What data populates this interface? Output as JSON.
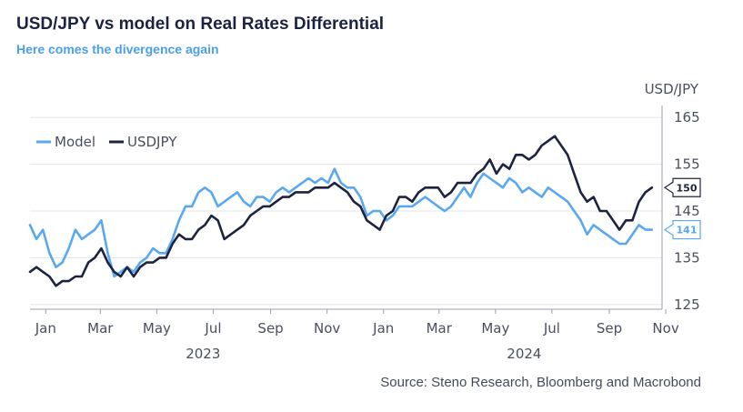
{
  "header": {
    "title": "USD/JPY vs model on Real Rates Differential",
    "subtitle": "Here comes the divergence again"
  },
  "footer": {
    "source": "Source: Steno Research, Bloomberg and Macrobond"
  },
  "colors": {
    "model": "#5aa7f2",
    "usdjpy": "#1e2440",
    "grid": "#e2e4ea",
    "axis": "#9aa0ad"
  },
  "chart_data": {
    "type": "line",
    "ylabel": "USD/JPY",
    "ylim": [
      124,
      166
    ],
    "yticks": [
      125,
      135,
      145,
      155,
      165
    ],
    "xlim": [
      "2022-12-15",
      "2024-10-28"
    ],
    "month_ticks": [
      {
        "date": "2023-01-01",
        "label": "Jan"
      },
      {
        "date": "2023-03-01",
        "label": "Mar"
      },
      {
        "date": "2023-05-01",
        "label": "May"
      },
      {
        "date": "2023-07-01",
        "label": "Jul"
      },
      {
        "date": "2023-09-01",
        "label": "Sep"
      },
      {
        "date": "2023-11-01",
        "label": "Nov"
      },
      {
        "date": "2024-01-01",
        "label": "Jan"
      },
      {
        "date": "2024-03-01",
        "label": "Mar"
      },
      {
        "date": "2024-05-01",
        "label": "May"
      },
      {
        "date": "2024-07-01",
        "label": "Jul"
      },
      {
        "date": "2024-09-01",
        "label": "Sep"
      },
      {
        "date": "2024-11-01",
        "label": "Nov"
      }
    ],
    "year_labels": [
      {
        "date": "2023-06-20",
        "label": "2023"
      },
      {
        "date": "2024-06-01",
        "label": "2024"
      }
    ],
    "legend_position": "top-left",
    "grid": true,
    "end_labels": [
      {
        "series": "USDJPY",
        "label": "150",
        "value": 150
      },
      {
        "series": "Model",
        "label": "141",
        "value": 141
      }
    ],
    "series": [
      {
        "name": "Model",
        "points": [
          [
            "2022-12-15",
            142
          ],
          [
            "2022-12-22",
            139
          ],
          [
            "2022-12-29",
            141
          ],
          [
            "2023-01-05",
            136
          ],
          [
            "2023-01-12",
            133
          ],
          [
            "2023-01-19",
            134
          ],
          [
            "2023-01-26",
            137
          ],
          [
            "2023-02-02",
            141
          ],
          [
            "2023-02-09",
            139
          ],
          [
            "2023-02-16",
            140
          ],
          [
            "2023-02-23",
            141
          ],
          [
            "2023-03-02",
            143
          ],
          [
            "2023-03-09",
            136
          ],
          [
            "2023-03-16",
            131
          ],
          [
            "2023-03-23",
            132
          ],
          [
            "2023-03-30",
            133
          ],
          [
            "2023-04-06",
            132
          ],
          [
            "2023-04-13",
            134
          ],
          [
            "2023-04-20",
            135
          ],
          [
            "2023-04-27",
            137
          ],
          [
            "2023-05-04",
            136
          ],
          [
            "2023-05-11",
            136
          ],
          [
            "2023-05-18",
            139
          ],
          [
            "2023-05-25",
            143
          ],
          [
            "2023-06-01",
            146
          ],
          [
            "2023-06-08",
            146
          ],
          [
            "2023-06-15",
            149
          ],
          [
            "2023-06-22",
            150
          ],
          [
            "2023-06-29",
            149
          ],
          [
            "2023-07-06",
            146
          ],
          [
            "2023-07-13",
            147
          ],
          [
            "2023-07-20",
            148
          ],
          [
            "2023-07-27",
            149
          ],
          [
            "2023-08-03",
            147
          ],
          [
            "2023-08-10",
            146
          ],
          [
            "2023-08-17",
            148
          ],
          [
            "2023-08-24",
            148
          ],
          [
            "2023-08-31",
            147
          ],
          [
            "2023-09-07",
            149
          ],
          [
            "2023-09-14",
            150
          ],
          [
            "2023-09-21",
            149
          ],
          [
            "2023-09-28",
            150
          ],
          [
            "2023-10-05",
            151
          ],
          [
            "2023-10-12",
            152
          ],
          [
            "2023-10-19",
            151
          ],
          [
            "2023-10-26",
            152
          ],
          [
            "2023-11-02",
            151
          ],
          [
            "2023-11-09",
            154
          ],
          [
            "2023-11-16",
            151
          ],
          [
            "2023-11-23",
            150
          ],
          [
            "2023-11-30",
            150
          ],
          [
            "2023-12-07",
            148
          ],
          [
            "2023-12-14",
            144
          ],
          [
            "2023-12-21",
            145
          ],
          [
            "2023-12-28",
            145
          ],
          [
            "2024-01-04",
            143
          ],
          [
            "2024-01-11",
            144
          ],
          [
            "2024-01-18",
            146
          ],
          [
            "2024-01-25",
            146
          ],
          [
            "2024-02-01",
            146
          ],
          [
            "2024-02-08",
            147
          ],
          [
            "2024-02-15",
            148
          ],
          [
            "2024-02-22",
            147
          ],
          [
            "2024-02-29",
            146
          ],
          [
            "2024-03-07",
            145
          ],
          [
            "2024-03-14",
            146
          ],
          [
            "2024-03-21",
            148
          ],
          [
            "2024-03-28",
            150
          ],
          [
            "2024-04-04",
            148
          ],
          [
            "2024-04-11",
            151
          ],
          [
            "2024-04-18",
            153
          ],
          [
            "2024-04-25",
            152
          ],
          [
            "2024-05-02",
            151
          ],
          [
            "2024-05-09",
            150
          ],
          [
            "2024-05-16",
            152
          ],
          [
            "2024-05-23",
            151
          ],
          [
            "2024-05-30",
            149
          ],
          [
            "2024-06-06",
            150
          ],
          [
            "2024-06-13",
            149
          ],
          [
            "2024-06-20",
            148
          ],
          [
            "2024-06-27",
            150
          ],
          [
            "2024-07-04",
            149
          ],
          [
            "2024-07-11",
            148
          ],
          [
            "2024-07-18",
            147
          ],
          [
            "2024-07-25",
            145
          ],
          [
            "2024-08-01",
            143
          ],
          [
            "2024-08-08",
            140
          ],
          [
            "2024-08-15",
            142
          ],
          [
            "2024-08-22",
            141
          ],
          [
            "2024-08-29",
            140
          ],
          [
            "2024-09-05",
            139
          ],
          [
            "2024-09-12",
            138
          ],
          [
            "2024-09-19",
            138
          ],
          [
            "2024-09-26",
            140
          ],
          [
            "2024-10-03",
            142
          ],
          [
            "2024-10-10",
            141
          ],
          [
            "2024-10-17",
            141
          ]
        ]
      },
      {
        "name": "USDJPY",
        "points": [
          [
            "2022-12-15",
            132
          ],
          [
            "2022-12-22",
            133
          ],
          [
            "2022-12-29",
            132
          ],
          [
            "2023-01-05",
            131
          ],
          [
            "2023-01-12",
            129
          ],
          [
            "2023-01-19",
            130
          ],
          [
            "2023-01-26",
            130
          ],
          [
            "2023-02-02",
            131
          ],
          [
            "2023-02-09",
            131
          ],
          [
            "2023-02-16",
            134
          ],
          [
            "2023-02-23",
            135
          ],
          [
            "2023-03-02",
            137
          ],
          [
            "2023-03-09",
            134
          ],
          [
            "2023-03-16",
            132
          ],
          [
            "2023-03-23",
            131
          ],
          [
            "2023-03-30",
            133
          ],
          [
            "2023-04-06",
            131
          ],
          [
            "2023-04-13",
            133
          ],
          [
            "2023-04-20",
            134
          ],
          [
            "2023-04-27",
            134
          ],
          [
            "2023-05-04",
            135
          ],
          [
            "2023-05-11",
            135
          ],
          [
            "2023-05-18",
            138
          ],
          [
            "2023-05-25",
            140
          ],
          [
            "2023-06-01",
            139
          ],
          [
            "2023-06-08",
            139
          ],
          [
            "2023-06-15",
            141
          ],
          [
            "2023-06-22",
            142
          ],
          [
            "2023-06-29",
            144
          ],
          [
            "2023-07-06",
            143
          ],
          [
            "2023-07-13",
            139
          ],
          [
            "2023-07-20",
            140
          ],
          [
            "2023-07-27",
            141
          ],
          [
            "2023-08-03",
            142
          ],
          [
            "2023-08-10",
            144
          ],
          [
            "2023-08-17",
            145
          ],
          [
            "2023-08-24",
            146
          ],
          [
            "2023-08-31",
            146
          ],
          [
            "2023-09-07",
            147
          ],
          [
            "2023-09-14",
            148
          ],
          [
            "2023-09-21",
            148
          ],
          [
            "2023-09-28",
            149
          ],
          [
            "2023-10-05",
            149
          ],
          [
            "2023-10-12",
            149
          ],
          [
            "2023-10-19",
            150
          ],
          [
            "2023-10-26",
            150
          ],
          [
            "2023-11-02",
            150
          ],
          [
            "2023-11-09",
            151
          ],
          [
            "2023-11-16",
            150
          ],
          [
            "2023-11-23",
            149
          ],
          [
            "2023-11-30",
            147
          ],
          [
            "2023-12-07",
            146
          ],
          [
            "2023-12-14",
            143
          ],
          [
            "2023-12-21",
            142
          ],
          [
            "2023-12-28",
            141
          ],
          [
            "2024-01-04",
            144
          ],
          [
            "2024-01-11",
            145
          ],
          [
            "2024-01-18",
            148
          ],
          [
            "2024-01-25",
            148
          ],
          [
            "2024-02-01",
            147
          ],
          [
            "2024-02-08",
            149
          ],
          [
            "2024-02-15",
            150
          ],
          [
            "2024-02-22",
            150
          ],
          [
            "2024-02-29",
            150
          ],
          [
            "2024-03-07",
            148
          ],
          [
            "2024-03-14",
            149
          ],
          [
            "2024-03-21",
            151
          ],
          [
            "2024-03-28",
            151
          ],
          [
            "2024-04-04",
            151
          ],
          [
            "2024-04-11",
            153
          ],
          [
            "2024-04-18",
            154
          ],
          [
            "2024-04-25",
            156
          ],
          [
            "2024-05-02",
            153
          ],
          [
            "2024-05-09",
            155
          ],
          [
            "2024-05-16",
            154
          ],
          [
            "2024-05-23",
            157
          ],
          [
            "2024-05-30",
            157
          ],
          [
            "2024-06-06",
            156
          ],
          [
            "2024-06-13",
            157
          ],
          [
            "2024-06-20",
            159
          ],
          [
            "2024-06-27",
            160
          ],
          [
            "2024-07-04",
            161
          ],
          [
            "2024-07-11",
            159
          ],
          [
            "2024-07-18",
            157
          ],
          [
            "2024-07-25",
            153
          ],
          [
            "2024-08-01",
            149
          ],
          [
            "2024-08-08",
            147
          ],
          [
            "2024-08-15",
            148
          ],
          [
            "2024-08-22",
            145
          ],
          [
            "2024-08-29",
            145
          ],
          [
            "2024-09-05",
            143
          ],
          [
            "2024-09-12",
            141
          ],
          [
            "2024-09-19",
            143
          ],
          [
            "2024-09-26",
            143
          ],
          [
            "2024-10-03",
            147
          ],
          [
            "2024-10-10",
            149
          ],
          [
            "2024-10-17",
            150
          ]
        ]
      }
    ]
  }
}
